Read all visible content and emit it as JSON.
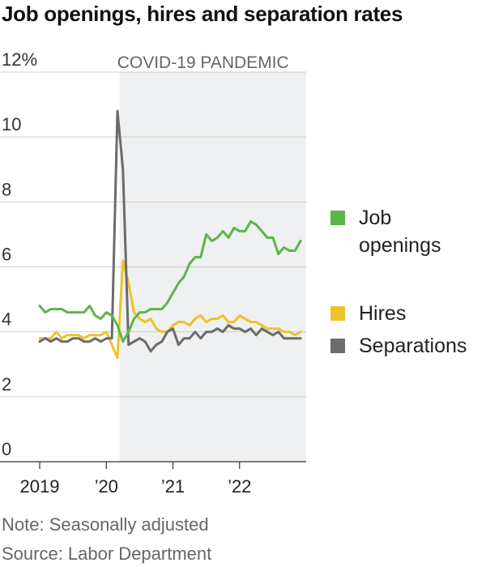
{
  "title": "Job openings, hires and separation rates",
  "note": "Note: Seasonally adjusted",
  "source": "Source: Labor Department",
  "colors": {
    "job_openings": "#5cb54a",
    "hires": "#ecc32c",
    "separations": "#6b6b6b",
    "shade": "#eff0f1",
    "grid": "#cfcfcf",
    "axis": "#333333"
  },
  "legend": [
    {
      "key": "job_openings",
      "label": "Job\nopenings"
    },
    {
      "key": "hires",
      "label": "Hires"
    },
    {
      "key": "separations",
      "label": "Separations"
    }
  ],
  "chart_data": {
    "type": "line",
    "title": "Job openings, hires and separation rates",
    "ylim": [
      0,
      12
    ],
    "yticks": [
      0,
      2,
      4,
      6,
      8,
      10,
      12
    ],
    "ytick_labels": [
      "0",
      "2",
      "4",
      "6",
      "8",
      "10",
      "12%"
    ],
    "xlim": [
      2019.0,
      2023.0
    ],
    "xticks": [
      2019,
      2020,
      2021,
      2022
    ],
    "xtick_labels": [
      "2019",
      "’20",
      "’21",
      "’22"
    ],
    "shaded_region": {
      "from": 2020.2,
      "to": 2023.0,
      "label": "COVID-19 PANDEMIC"
    },
    "grid": true,
    "legend_position": "right",
    "x_start": "2019-01",
    "x_step": "monthly",
    "series": [
      {
        "name": "Job openings",
        "key": "job_openings",
        "values": [
          4.8,
          4.6,
          4.7,
          4.7,
          4.7,
          4.6,
          4.6,
          4.6,
          4.6,
          4.8,
          4.5,
          4.4,
          4.6,
          4.5,
          4.2,
          3.7,
          4.0,
          4.4,
          4.6,
          4.6,
          4.7,
          4.7,
          4.7,
          4.9,
          5.2,
          5.5,
          5.7,
          6.1,
          6.3,
          6.3,
          7.0,
          6.8,
          6.9,
          7.1,
          6.9,
          7.2,
          7.1,
          7.1,
          7.4,
          7.3,
          7.1,
          6.9,
          6.9,
          6.4,
          6.6,
          6.5,
          6.5,
          6.8
        ]
      },
      {
        "name": "Hires",
        "key": "hires",
        "values": [
          3.8,
          3.8,
          3.8,
          4.0,
          3.8,
          3.9,
          3.9,
          3.9,
          3.8,
          3.9,
          3.9,
          3.9,
          4.0,
          3.6,
          3.2,
          6.2,
          5.5,
          4.6,
          4.4,
          4.3,
          4.4,
          4.1,
          4.0,
          4.0,
          4.2,
          4.3,
          4.3,
          4.2,
          4.4,
          4.5,
          4.3,
          4.4,
          4.4,
          4.5,
          4.3,
          4.3,
          4.5,
          4.4,
          4.3,
          4.3,
          4.2,
          4.1,
          4.1,
          4.1,
          4.0,
          4.0,
          3.9,
          4.0
        ]
      },
      {
        "name": "Separations",
        "key": "separations",
        "values": [
          3.7,
          3.8,
          3.7,
          3.8,
          3.7,
          3.7,
          3.8,
          3.8,
          3.7,
          3.7,
          3.8,
          3.7,
          3.8,
          3.8,
          10.8,
          9.0,
          3.6,
          3.7,
          3.8,
          3.7,
          3.4,
          3.6,
          3.7,
          4.0,
          4.1,
          3.6,
          3.8,
          3.8,
          4.0,
          3.8,
          4.0,
          4.0,
          4.1,
          4.0,
          4.2,
          4.1,
          4.1,
          4.0,
          4.1,
          3.9,
          4.1,
          4.0,
          3.9,
          4.0,
          3.8,
          3.8,
          3.8,
          3.8
        ]
      }
    ]
  }
}
